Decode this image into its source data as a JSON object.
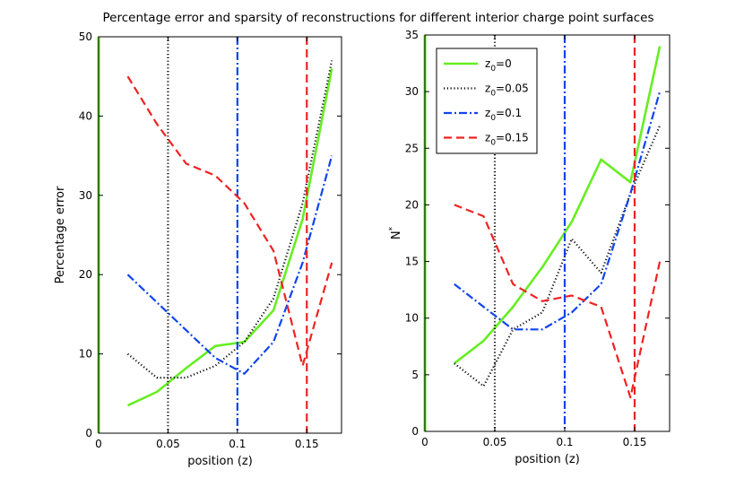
{
  "figure_title": "Percentage error and sparsity of reconstructions for different interior charge point surfaces",
  "chart_data": [
    {
      "type": "line",
      "title": "",
      "xlabel": "position (z)",
      "ylabel": "Percentage error",
      "ylabel_superscript": "",
      "xlim": [
        0,
        0.175
      ],
      "ylim": [
        0,
        50
      ],
      "xticks": [
        0,
        0.05,
        0.1,
        0.15
      ],
      "xtick_labels": [
        "0",
        "0.05",
        "0.1",
        "0.15"
      ],
      "yticks": [
        0,
        10,
        20,
        30,
        40,
        50
      ],
      "ytick_labels": [
        "0",
        "10",
        "20",
        "30",
        "40",
        "50"
      ],
      "grid": false,
      "series": [
        {
          "name": "z0=0",
          "color": "#66ee22",
          "dash": "solid",
          "vline": 0,
          "x": [
            0.021,
            0.042,
            0.063,
            0.084,
            0.105,
            0.126,
            0.147,
            0.168
          ],
          "y": [
            3.5,
            5.2,
            8.2,
            11,
            11.5,
            15.5,
            27,
            46
          ]
        },
        {
          "name": "z0=0.05",
          "color": "#111111",
          "dash": "dotted",
          "vline": 0.05,
          "x": [
            0.021,
            0.042,
            0.063,
            0.084,
            0.105,
            0.126,
            0.147,
            0.168
          ],
          "y": [
            10,
            7,
            7,
            8.5,
            11.5,
            17,
            29,
            47
          ]
        },
        {
          "name": "z0=0.1",
          "color": "#1144ee",
          "dash": "dashdot",
          "vline": 0.1,
          "x": [
            0.021,
            0.042,
            0.063,
            0.084,
            0.105,
            0.126,
            0.147,
            0.168
          ],
          "y": [
            20,
            16.5,
            13,
            9.5,
            7.5,
            11.5,
            21.5,
            35
          ]
        },
        {
          "name": "z0=0.15",
          "color": "#ee2222",
          "dash": "dashed",
          "vline": 0.15,
          "x": [
            0.021,
            0.042,
            0.063,
            0.084,
            0.105,
            0.126,
            0.147,
            0.168
          ],
          "y": [
            45,
            39,
            34,
            32.5,
            29,
            23,
            8.5,
            21.5
          ]
        }
      ]
    },
    {
      "type": "line",
      "title": "",
      "xlabel": "position (z)",
      "ylabel": "N",
      "ylabel_superscript": "*",
      "xlim": [
        0,
        0.175
      ],
      "ylim": [
        0,
        35
      ],
      "xticks": [
        0,
        0.05,
        0.1,
        0.15
      ],
      "xtick_labels": [
        "0",
        "0.05",
        "0.1",
        "0.15"
      ],
      "yticks": [
        0,
        5,
        10,
        15,
        20,
        25,
        30,
        35
      ],
      "ytick_labels": [
        "0",
        "5",
        "10",
        "15",
        "20",
        "25",
        "30",
        "35"
      ],
      "grid": false,
      "legend": {
        "placement": "top-left",
        "entries": [
          {
            "base": "z",
            "sub": "0",
            "rest": "=0"
          },
          {
            "base": "z",
            "sub": "0",
            "rest": "=0.05"
          },
          {
            "base": "z",
            "sub": "0",
            "rest": "=0.1"
          },
          {
            "base": "z",
            "sub": "0",
            "rest": "=0.15"
          }
        ]
      },
      "series": [
        {
          "name": "z0=0",
          "color": "#66ee22",
          "dash": "solid",
          "vline": 0,
          "x": [
            0.021,
            0.042,
            0.063,
            0.084,
            0.105,
            0.126,
            0.147,
            0.168
          ],
          "y": [
            6,
            8,
            11,
            14.5,
            18.5,
            24,
            22,
            34
          ]
        },
        {
          "name": "z0=0.05",
          "color": "#111111",
          "dash": "dotted",
          "vline": 0.05,
          "x": [
            0.021,
            0.042,
            0.063,
            0.084,
            0.105,
            0.126,
            0.147,
            0.168
          ],
          "y": [
            6,
            4,
            9,
            10.5,
            17,
            14,
            21,
            27
          ]
        },
        {
          "name": "z0=0.1",
          "color": "#1144ee",
          "dash": "dashdot",
          "vline": 0.1,
          "x": [
            0.021,
            0.042,
            0.063,
            0.084,
            0.105,
            0.126,
            0.147,
            0.168
          ],
          "y": [
            13,
            11,
            9,
            9,
            10.5,
            13,
            21,
            30
          ]
        },
        {
          "name": "z0=0.15",
          "color": "#ee2222",
          "dash": "dashed",
          "vline": 0.15,
          "x": [
            0.021,
            0.042,
            0.063,
            0.084,
            0.105,
            0.126,
            0.147,
            0.168
          ],
          "y": [
            20,
            19,
            13,
            11.5,
            12,
            11,
            3,
            15
          ]
        }
      ]
    }
  ]
}
